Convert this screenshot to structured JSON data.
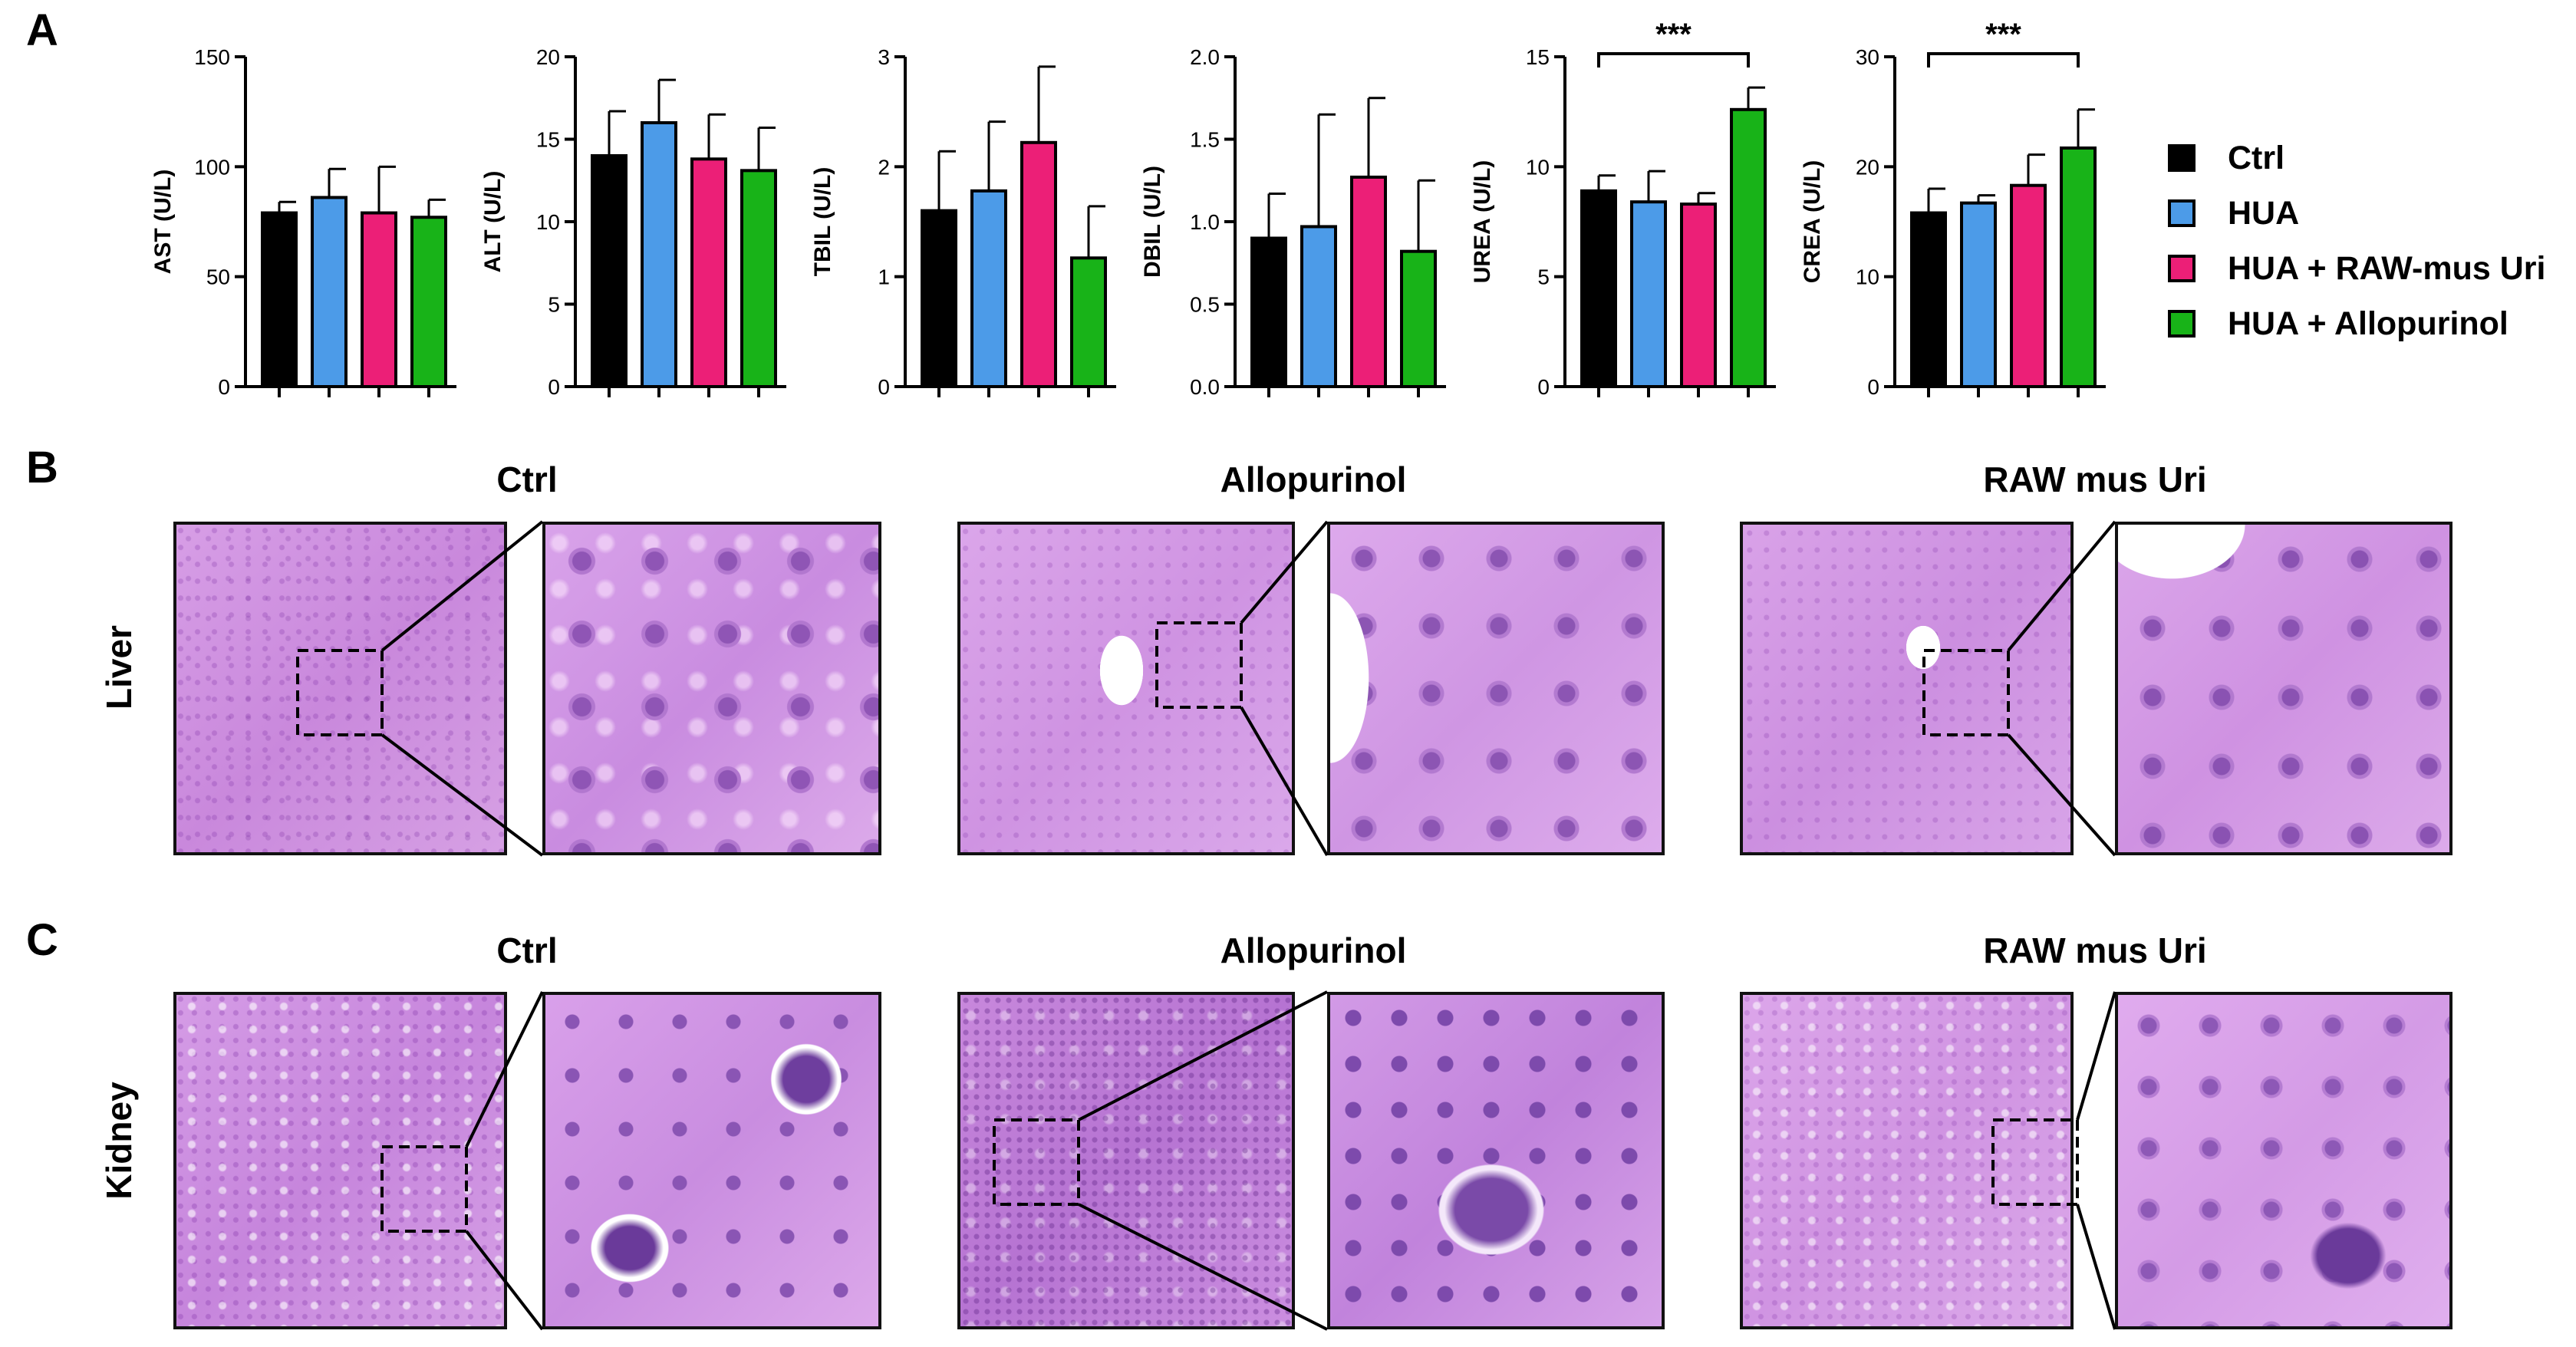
{
  "panels": {
    "a": "A",
    "b": "B",
    "c": "C"
  },
  "colors": {
    "Ctrl": "#000000",
    "HUA": "#4c9be8",
    "HUA + RAW-mus Uri": "#ec1f77",
    "HUA + Allopurinol": "#18b318"
  },
  "legend": {
    "items": [
      {
        "label": "Ctrl",
        "color": "#000000"
      },
      {
        "label": "HUA",
        "color": "#4c9be8"
      },
      {
        "label": "HUA + RAW-mus Uri",
        "color": "#ec1f77"
      },
      {
        "label": "HUA + Allopurinol",
        "color": "#18b318"
      }
    ]
  },
  "chart_data": [
    {
      "type": "bar",
      "ylabel": "AST (U/L)",
      "categories": [
        "Ctrl",
        "HUA",
        "HUA + RAW-mus Uri",
        "HUA + Allopurinol"
      ],
      "values": [
        79,
        86,
        79,
        77
      ],
      "errors": [
        5,
        13,
        21,
        8
      ],
      "ylim": [
        0,
        150
      ],
      "yticks": [
        0,
        50,
        100,
        150
      ],
      "tick_labels": [
        "0",
        "50",
        "100",
        "150"
      ],
      "significance": ""
    },
    {
      "type": "bar",
      "ylabel": "ALT (U/L)",
      "categories": [
        "Ctrl",
        "HUA",
        "HUA + RAW-mus Uri",
        "HUA + Allopurinol"
      ],
      "values": [
        14,
        16,
        13.8,
        13.1
      ],
      "errors": [
        2.7,
        2.6,
        2.7,
        2.6
      ],
      "ylim": [
        0,
        20
      ],
      "yticks": [
        0,
        5,
        10,
        15,
        20
      ],
      "tick_labels": [
        "0",
        "5",
        "10",
        "15",
        "20"
      ],
      "significance": ""
    },
    {
      "type": "bar",
      "ylabel": "TBIL (U/L)",
      "categories": [
        "Ctrl",
        "HUA",
        "HUA + RAW-mus Uri",
        "HUA + Allopurinol"
      ],
      "values": [
        1.6,
        1.78,
        2.22,
        1.17
      ],
      "errors": [
        0.54,
        0.63,
        0.69,
        0.47
      ],
      "ylim": [
        0,
        3
      ],
      "yticks": [
        0,
        1,
        2,
        3
      ],
      "tick_labels": [
        "0",
        "1",
        "2",
        "3"
      ],
      "significance": ""
    },
    {
      "type": "bar",
      "ylabel": "DBIL (U/L)",
      "categories": [
        "Ctrl",
        "HUA",
        "HUA + RAW-mus Uri",
        "HUA + Allopurinol"
      ],
      "values": [
        0.9,
        0.97,
        1.27,
        0.82
      ],
      "errors": [
        0.27,
        0.68,
        0.48,
        0.43
      ],
      "ylim": [
        0,
        2
      ],
      "yticks": [
        0,
        0.5,
        1,
        1.5,
        2
      ],
      "tick_labels": [
        "0.0",
        "0.5",
        "1.0",
        "1.5",
        "2.0"
      ],
      "significance": ""
    },
    {
      "type": "bar",
      "ylabel": "UREA (U/L)",
      "categories": [
        "Ctrl",
        "HUA",
        "HUA + RAW-mus Uri",
        "HUA + Allopurinol"
      ],
      "values": [
        8.9,
        8.4,
        8.3,
        12.6
      ],
      "errors": [
        0.7,
        1.4,
        0.5,
        1.0
      ],
      "ylim": [
        0,
        15
      ],
      "yticks": [
        0,
        5,
        10,
        15
      ],
      "tick_labels": [
        "0",
        "5",
        "10",
        "15"
      ],
      "significance": "***"
    },
    {
      "type": "bar",
      "ylabel": "CREA (U/L)",
      "categories": [
        "Ctrl",
        "HUA",
        "HUA + RAW-mus Uri",
        "HUA + Allopurinol"
      ],
      "values": [
        15.8,
        16.7,
        18.3,
        21.7
      ],
      "errors": [
        2.2,
        0.7,
        2.8,
        3.5
      ],
      "ylim": [
        0,
        30
      ],
      "yticks": [
        0,
        10,
        20,
        30
      ],
      "tick_labels": [
        "0",
        "10",
        "20",
        "30"
      ],
      "significance": "***"
    }
  ],
  "histology": {
    "columns": [
      "Ctrl",
      "Allopurinol",
      "RAW mus Uri"
    ],
    "rows": [
      "Liver",
      "Kidney"
    ]
  }
}
